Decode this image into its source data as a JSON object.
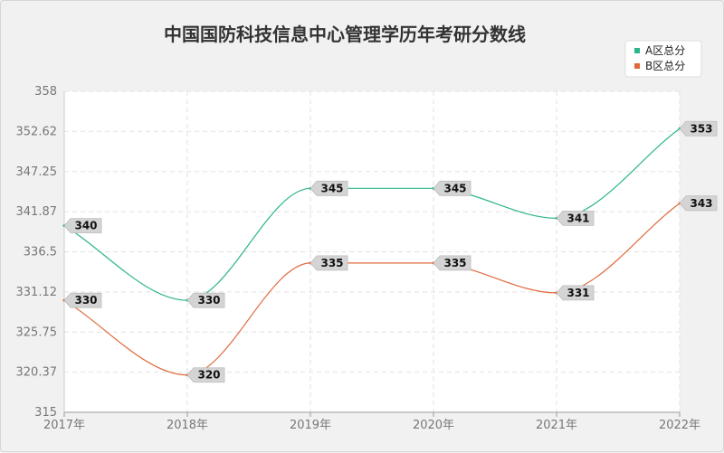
{
  "chart_data": {
    "type": "line",
    "title": "中国国防科技信息中心管理学历年考研分数线",
    "categories": [
      "2017年",
      "2018年",
      "2019年",
      "2020年",
      "2021年",
      "2022年"
    ],
    "series": [
      {
        "name": "A区总分",
        "color": "#2bb58b",
        "values": [
          340,
          330,
          345,
          345,
          341,
          353
        ]
      },
      {
        "name": "B区总分",
        "color": "#e0693c",
        "values": [
          330,
          320,
          335,
          335,
          331,
          343
        ]
      }
    ],
    "yticks": [
      "315",
      "320.37",
      "325.75",
      "331.12",
      "336.5",
      "341.87",
      "347.25",
      "352.62",
      "358"
    ],
    "ylim": [
      315,
      358
    ],
    "grid": true,
    "legend": "top-right",
    "smooth": true,
    "data_labels": true
  }
}
